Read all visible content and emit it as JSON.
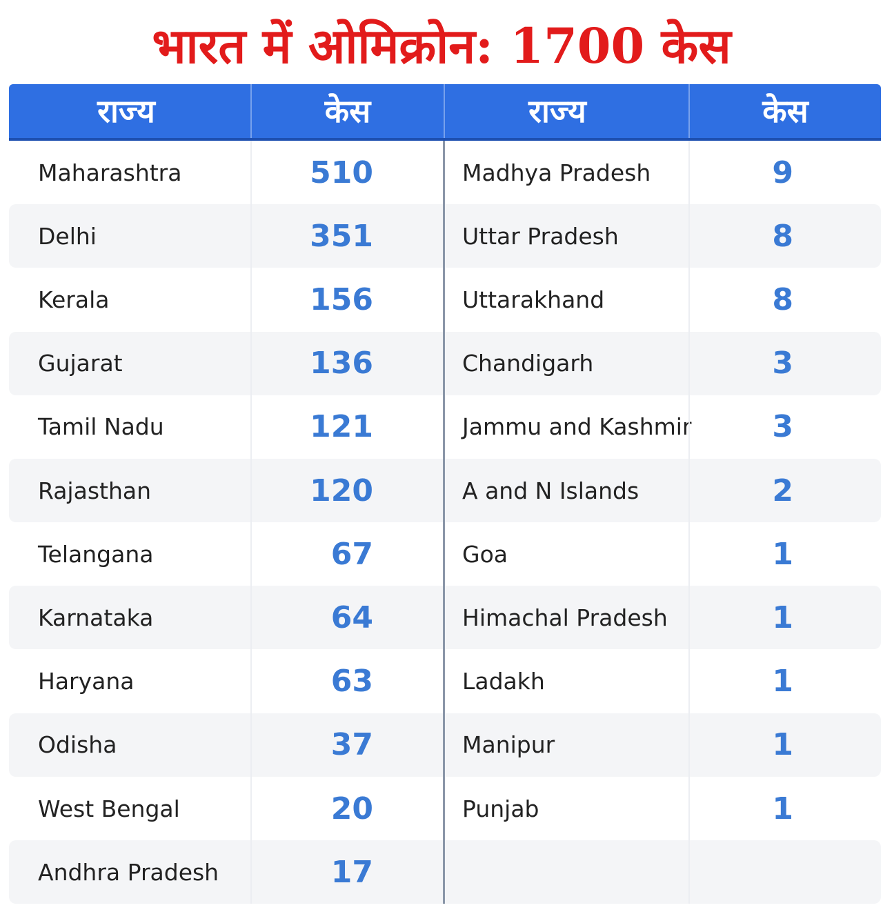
{
  "title": "भारत में ओमिक्रोन: 1700 केस",
  "header": {
    "col_state": "राज्य",
    "col_cases": "केस"
  },
  "colors": {
    "title": "#e21b1b",
    "header_bg": "#2f6fe2",
    "number": "#3a7ad4",
    "stripe": "#f4f5f7"
  },
  "chart_data": {
    "type": "table",
    "title": "भारत में ओमिक्रोन: 1700 केस",
    "columns": [
      "राज्य",
      "केस",
      "राज्य",
      "केस"
    ],
    "left": [
      {
        "state": "Maharashtra",
        "cases": "510"
      },
      {
        "state": "Delhi",
        "cases": "351"
      },
      {
        "state": "Kerala",
        "cases": "156"
      },
      {
        "state": "Gujarat",
        "cases": "136"
      },
      {
        "state": "Tamil Nadu",
        "cases": "121"
      },
      {
        "state": "Rajasthan",
        "cases": "120"
      },
      {
        "state": "Telangana",
        "cases": "67"
      },
      {
        "state": "Karnataka",
        "cases": "64"
      },
      {
        "state": "Haryana",
        "cases": "63"
      },
      {
        "state": "Odisha",
        "cases": "37"
      },
      {
        "state": "West Bengal",
        "cases": "20"
      },
      {
        "state": "Andhra Pradesh",
        "cases": "17"
      }
    ],
    "right": [
      {
        "state": "Madhya Pradesh",
        "cases": "9"
      },
      {
        "state": "Uttar Pradesh",
        "cases": "8"
      },
      {
        "state": "Uttarakhand",
        "cases": "8"
      },
      {
        "state": "Chandigarh",
        "cases": "3"
      },
      {
        "state": "Jammu and Kashmir",
        "cases": "3"
      },
      {
        "state": "A and N Islands",
        "cases": "2"
      },
      {
        "state": "Goa",
        "cases": "1"
      },
      {
        "state": "Himachal Pradesh",
        "cases": "1"
      },
      {
        "state": "Ladakh",
        "cases": "1"
      },
      {
        "state": "Manipur",
        "cases": "1"
      },
      {
        "state": "Punjab",
        "cases": "1"
      }
    ]
  }
}
